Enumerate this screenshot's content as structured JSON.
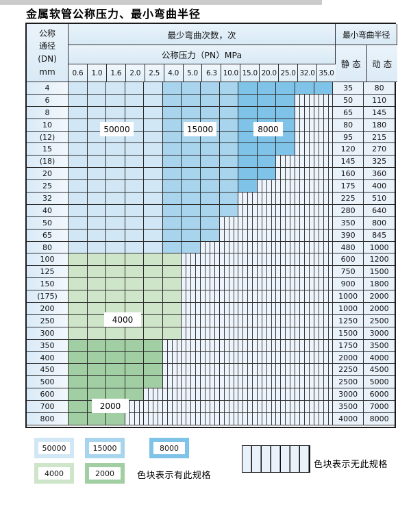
{
  "page": {
    "title": "金属软管公称压力、最小弯曲半径"
  },
  "table": {
    "dn_header_lines": [
      "公称",
      "通径",
      "(DN)",
      "mm"
    ],
    "cycles_header": "最少弯曲次数，次",
    "pressure_header": "公称压力（PN）MPa",
    "pressure_values": [
      "0.6",
      "1.0",
      "1.6",
      "2.0",
      "2.5",
      "4.0",
      "5.0",
      "6.3",
      "10.0",
      "15.0",
      "20.0",
      "25.0",
      "32.0",
      "35.0"
    ],
    "radius_header": "最小弯曲半径",
    "static_label": "静 态",
    "dynamic_label": "动 态",
    "blue_zones": [
      {
        "cycles": "50000",
        "columns": [
          "0.6",
          "1.0",
          "1.6",
          "2.0",
          "2.5"
        ]
      },
      {
        "cycles": "15000",
        "columns": [
          "4.0",
          "5.0",
          "6.3",
          "10.0"
        ]
      },
      {
        "cycles": "8000",
        "columns": [
          "15.0",
          "20.0",
          "25.0",
          "32.0",
          "35.0"
        ]
      }
    ],
    "green_zones": [
      {
        "cycles": "4000",
        "rows": [
          "100",
          "125",
          "150",
          "(175)",
          "200",
          "250",
          "300"
        ]
      },
      {
        "cycles": "2000",
        "rows": [
          "350",
          "400",
          "450",
          "500",
          "600",
          "700",
          "800"
        ]
      }
    ],
    "rows": [
      {
        "dn": "4",
        "zone": "blue",
        "colored": 14,
        "static": "35",
        "dynamic": "80"
      },
      {
        "dn": "6",
        "zone": "blue",
        "colored": 12,
        "static": "50",
        "dynamic": "110"
      },
      {
        "dn": "8",
        "zone": "blue",
        "colored": 12,
        "static": "65",
        "dynamic": "145"
      },
      {
        "dn": "10",
        "zone": "blue",
        "colored": 12,
        "static": "80",
        "dynamic": "180"
      },
      {
        "dn": "(12)",
        "zone": "blue",
        "colored": 12,
        "static": "95",
        "dynamic": "215"
      },
      {
        "dn": "15",
        "zone": "blue",
        "colored": 12,
        "static": "120",
        "dynamic": "270"
      },
      {
        "dn": "(18)",
        "zone": "blue",
        "colored": 11,
        "static": "145",
        "dynamic": "325"
      },
      {
        "dn": "20",
        "zone": "blue",
        "colored": 11,
        "static": "160",
        "dynamic": "360"
      },
      {
        "dn": "25",
        "zone": "blue",
        "colored": 10,
        "static": "175",
        "dynamic": "400"
      },
      {
        "dn": "32",
        "zone": "blue",
        "colored": 9,
        "static": "225",
        "dynamic": "510"
      },
      {
        "dn": "40",
        "zone": "blue",
        "colored": 9,
        "static": "280",
        "dynamic": "640"
      },
      {
        "dn": "50",
        "zone": "blue",
        "colored": 8,
        "static": "350",
        "dynamic": "800"
      },
      {
        "dn": "65",
        "zone": "blue",
        "colored": 8,
        "static": "390",
        "dynamic": "845"
      },
      {
        "dn": "80",
        "zone": "blue",
        "colored": 7,
        "static": "480",
        "dynamic": "1000"
      },
      {
        "dn": "100",
        "zone": "green4000",
        "colored": 6,
        "static": "600",
        "dynamic": "1200"
      },
      {
        "dn": "125",
        "zone": "green4000",
        "colored": 6,
        "static": "750",
        "dynamic": "1500"
      },
      {
        "dn": "150",
        "zone": "green4000",
        "colored": 6,
        "static": "900",
        "dynamic": "1800"
      },
      {
        "dn": "(175)",
        "zone": "green4000",
        "colored": 6,
        "static": "1000",
        "dynamic": "2000"
      },
      {
        "dn": "200",
        "zone": "green4000",
        "colored": 6,
        "static": "1000",
        "dynamic": "2000"
      },
      {
        "dn": "250",
        "zone": "green4000",
        "colored": 6,
        "static": "1250",
        "dynamic": "2500"
      },
      {
        "dn": "300",
        "zone": "green4000",
        "colored": 6,
        "static": "1500",
        "dynamic": "3000"
      },
      {
        "dn": "350",
        "zone": "green2000",
        "colored": 5,
        "static": "1750",
        "dynamic": "3500"
      },
      {
        "dn": "400",
        "zone": "green2000",
        "colored": 5,
        "static": "2000",
        "dynamic": "4000"
      },
      {
        "dn": "450",
        "zone": "green2000",
        "colored": 5,
        "static": "2250",
        "dynamic": "4500"
      },
      {
        "dn": "500",
        "zone": "green2000",
        "colored": 5,
        "static": "2500",
        "dynamic": "5000"
      },
      {
        "dn": "600",
        "zone": "green2000",
        "colored": 4,
        "static": "3000",
        "dynamic": "6000"
      },
      {
        "dn": "700",
        "zone": "green2000",
        "colored": 3,
        "static": "3500",
        "dynamic": "7000"
      },
      {
        "dn": "800",
        "zone": "green2000",
        "colored": 3,
        "static": "4000",
        "dynamic": "8000"
      }
    ],
    "overlay_labels": {
      "l50000": "50000",
      "l15000": "15000",
      "l8000": "8000",
      "l4000": "4000",
      "l2000": "2000"
    }
  },
  "legend": {
    "sw50000": "50000",
    "sw15000": "15000",
    "sw8000": "8000",
    "sw4000": "4000",
    "sw2000": "2000",
    "has_spec_note": "色块表示有此规格",
    "no_spec_note": "色块表示无此规格"
  },
  "colors": {
    "c50000": "#d2e7f6",
    "c15000": "#a8d4ee",
    "c8000": "#7fc4e8",
    "c4000": "#cfe5c9",
    "c2000": "#a1cfa3",
    "grid_line": "#2c2c2c",
    "hatch_bg": "#eef4fb",
    "value_col_bg": "#e9f1f9"
  }
}
